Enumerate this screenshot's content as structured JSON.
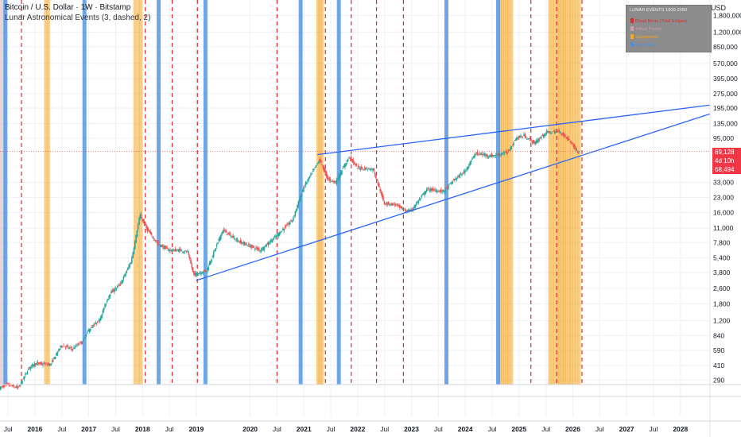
{
  "header": {
    "symbol_line": "Bitcoin / U.S. Dollar · 1W · Bitstamp",
    "indicator_line": "Lunar Astronomical Events (3, dashed, 2)"
  },
  "currency": "USD",
  "legend": {
    "title": "LUNAR EVENTS 1900-2050",
    "items": [
      {
        "label": "Blood Moon (Total Eclipse)",
        "color": "#e02a2a"
      },
      {
        "label": "Tetrad Period",
        "color": "#c9a0a6"
      },
      {
        "label": "Supermoon",
        "color": "#f5a623"
      },
      {
        "label": "Blue Moon",
        "color": "#4a90e2"
      }
    ]
  },
  "price_tags": {
    "last": {
      "value": "69,128",
      "color": "#f23645"
    },
    "countdown": {
      "value": "4d 10h",
      "color": "#f23645"
    },
    "low": {
      "value": "68,494",
      "color": "#f23645"
    }
  },
  "colors": {
    "up": "#26a69a",
    "down": "#ef5350",
    "trendline": "#2962ff",
    "blood_moon": "#e02a2a",
    "supermoon": "#f5a623",
    "blue_moon": "#4a90e2",
    "tetrad": "#c9a0a6",
    "grid": "#eef0f3"
  },
  "chart_data": {
    "type": "line",
    "title": "Bitcoin / U.S. Dollar · 1W · Bitstamp",
    "scale": "log",
    "xlim": [
      2015.35,
      2028.55
    ],
    "ylim": [
      260,
      2600000
    ],
    "x_tick_labels": [
      "Jul",
      "2016",
      "Jul",
      "2017",
      "Jul",
      "2018",
      "Jul",
      "2019",
      "2020",
      "Jul",
      "2021",
      "Jul",
      "2022",
      "Jul",
      "2023",
      "Jul",
      "2024",
      "Jul",
      "2025",
      "Jul",
      "2026",
      "Jul",
      "2027",
      "Jul",
      "2028"
    ],
    "x_tick_values": [
      2015.5,
      2016.0,
      2016.5,
      2017.0,
      2017.5,
      2018.0,
      2018.5,
      2019.0,
      2020.0,
      2020.5,
      2021.0,
      2021.5,
      2022.0,
      2022.5,
      2023.0,
      2023.5,
      2024.0,
      2024.5,
      2025.0,
      2025.5,
      2026.0,
      2026.5,
      2027.0,
      2027.5,
      2028.0
    ],
    "y_tick_labels": [
      "290",
      "410",
      "590",
      "840",
      "1,200",
      "1,800",
      "2,600",
      "3,800",
      "5,400",
      "7,800",
      "11,000",
      "16,000",
      "23,000",
      "33,000",
      "95,000",
      "135,000",
      "195,000",
      "275,000",
      "395,000",
      "570,000",
      "850,000",
      "1,200,000",
      "1,800,000"
    ],
    "y_tick_values": [
      290,
      410,
      590,
      840,
      1200,
      1800,
      2600,
      3800,
      5400,
      7800,
      11000,
      16000,
      23000,
      33000,
      95000,
      135000,
      195000,
      275000,
      395000,
      570000,
      850000,
      1200000,
      1800000
    ],
    "series": [
      {
        "x": [
          2015.35,
          2015.5,
          2015.7,
          2015.9,
          2016.0,
          2016.3,
          2016.5,
          2016.7,
          2016.9,
          2017.0,
          2017.2,
          2017.4,
          2017.6,
          2017.8,
          2017.96,
          2018.1,
          2018.3,
          2018.5,
          2018.7,
          2018.85,
          2018.96,
          2019.2,
          2019.5,
          2019.8,
          2020.0,
          2020.2,
          2020.5,
          2020.8,
          2021.0,
          2021.3,
          2021.45,
          2021.6,
          2021.85,
          2022.0,
          2022.3,
          2022.5,
          2022.7,
          2022.9,
          2023.0,
          2023.3,
          2023.6,
          2023.8,
          2024.0,
          2024.2,
          2024.5,
          2024.8,
          2024.95,
          2025.1,
          2025.3,
          2025.5,
          2025.75,
          2025.95,
          2026.1
        ],
        "values": [
          240,
          260,
          240,
          390,
          430,
          420,
          670,
          610,
          740,
          950,
          1200,
          2300,
          2900,
          5000,
          15000,
          10500,
          7500,
          6500,
          6500,
          6200,
          3600,
          4000,
          10500,
          8000,
          7200,
          6500,
          9200,
          13500,
          29000,
          57000,
          36000,
          33000,
          61000,
          47000,
          45000,
          20000,
          19500,
          16700,
          16700,
          28000,
          26500,
          35000,
          43000,
          66000,
          62000,
          68000,
          95000,
          101000,
          84000,
          108000,
          112000,
          90000,
          68494
        ]
      }
    ],
    "last_price": 69128,
    "annotations": [
      {
        "label": "Blood Moon (Total Eclipse)",
        "x": [
          2015.75,
          2018.05,
          2018.55,
          2019.02,
          2020.5,
          2021.4,
          2021.88,
          2022.35,
          2022.85,
          2025.22,
          2025.7,
          2026.17
        ]
      },
      {
        "label": "Supermoon",
        "x": [
          2016.2,
          2016.25,
          2017.86,
          2017.92,
          2017.97,
          2021.26,
          2021.3,
          2021.34,
          2024.65,
          2024.69,
          2024.73,
          2024.77,
          2024.81,
          2024.86,
          2025.57,
          2025.62,
          2025.67,
          2025.72,
          2025.76,
          2025.8,
          2025.84,
          2025.88,
          2025.93,
          2025.97,
          2026.02,
          2026.07,
          2026.12
        ]
      },
      {
        "label": "Blue Moon",
        "x": [
          2015.45,
          2016.92,
          2018.3,
          2019.17,
          2020.94,
          2021.65,
          2023.65,
          2024.61
        ]
      },
      {
        "label": "Tetrad Period",
        "x": [
          2015.35,
          2015.45
        ]
      }
    ],
    "trendlines": [
      {
        "x": [
          2019.0,
          2028.55
        ],
        "y": [
          3150,
          170000
        ]
      },
      {
        "x": [
          2021.25,
          2028.55
        ],
        "y": [
          64000,
          210000
        ]
      }
    ],
    "grid": true,
    "legend": "top-right"
  }
}
